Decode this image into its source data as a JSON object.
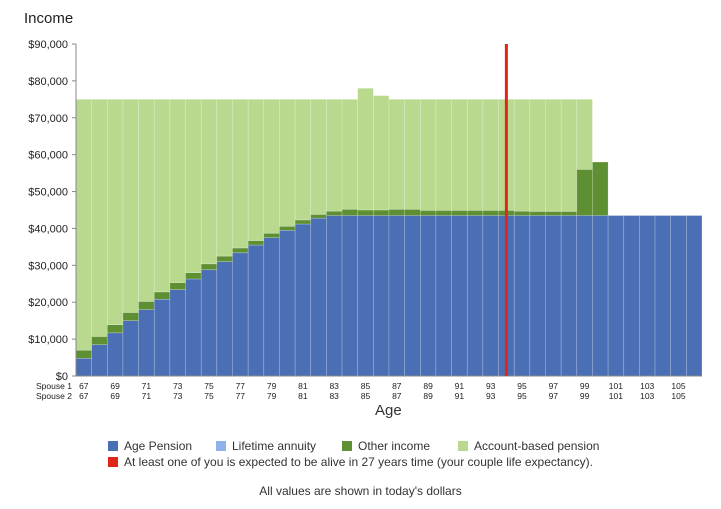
{
  "chart_data": {
    "type": "bar",
    "stacked": true,
    "ylabel": "Income",
    "xlabel": "Age",
    "ylim": [
      0,
      90000
    ],
    "yticks": [
      "$0",
      "$10,000",
      "$20,000",
      "$30,000",
      "$40,000",
      "$50,000",
      "$60,000",
      "$70,000",
      "$80,000",
      "$90,000"
    ],
    "row_labels": [
      "Spouse 1",
      "Spouse 2"
    ],
    "categories": [
      67,
      68,
      69,
      70,
      71,
      72,
      73,
      74,
      75,
      76,
      77,
      78,
      79,
      80,
      81,
      82,
      83,
      84,
      85,
      86,
      87,
      88,
      89,
      90,
      91,
      92,
      93,
      94,
      95,
      96,
      97,
      98,
      99,
      100,
      101,
      102,
      103,
      104,
      105,
      106
    ],
    "tick_labels": [
      "67",
      "69",
      "71",
      "73",
      "75",
      "77",
      "79",
      "81",
      "83",
      "85",
      "87",
      "89",
      "91",
      "93",
      "95",
      "97",
      "99",
      "101",
      "103",
      "105"
    ],
    "series": [
      {
        "name": "Age Pension",
        "color": "#4a6fb5",
        "values": [
          4800,
          8500,
          11700,
          15000,
          18000,
          20800,
          23400,
          26300,
          28800,
          31000,
          33400,
          35500,
          37500,
          39500,
          41200,
          42800,
          43500,
          43500,
          43500,
          43500,
          43500,
          43500,
          43500,
          43500,
          43500,
          43500,
          43500,
          43500,
          43500,
          43500,
          43500,
          43500,
          43500,
          43500,
          43500,
          43500,
          43500,
          43500,
          43500,
          43500
        ]
      },
      {
        "name": "Lifetime annuity",
        "color": "#8fb3e8",
        "values": [
          0,
          0,
          0,
          0,
          0,
          0,
          0,
          0,
          0,
          0,
          0,
          0,
          0,
          0,
          0,
          0,
          0,
          0,
          0,
          0,
          0,
          0,
          0,
          0,
          0,
          0,
          0,
          0,
          0,
          0,
          0,
          0,
          0,
          0,
          0,
          0,
          0,
          0,
          0,
          0
        ]
      },
      {
        "name": "Other income",
        "color": "#5e8f32",
        "values": [
          2200,
          2200,
          2200,
          2200,
          2200,
          2000,
          1900,
          1700,
          1600,
          1500,
          1300,
          1200,
          1200,
          1100,
          1100,
          1000,
          1200,
          1700,
          1500,
          1500,
          1700,
          1700,
          1400,
          1400,
          1400,
          1400,
          1400,
          1400,
          1200,
          1100,
          1100,
          1100,
          12500,
          14500,
          0,
          0,
          0,
          0,
          0,
          0
        ]
      },
      {
        "name": "Account-based pension",
        "color": "#b9d98f",
        "values": [
          68000,
          64300,
          61100,
          57800,
          54800,
          52200,
          49700,
          47000,
          44600,
          42500,
          40300,
          38300,
          36300,
          34400,
          32700,
          31200,
          30300,
          29800,
          33000,
          31000,
          29800,
          29800,
          30100,
          30100,
          30100,
          30100,
          30100,
          30100,
          30300,
          30400,
          30400,
          30400,
          19000,
          0,
          0,
          0,
          0,
          0,
          0,
          0
        ]
      }
    ],
    "annotations": [
      {
        "type": "vertical-line",
        "x": 94,
        "color": "#e0251b",
        "label": "At least one of you is expected to be alive in 27 years time (your couple life expectancy)."
      }
    ],
    "legend_position": "bottom",
    "grid": false
  },
  "footnote": "All values are shown in today's dollars"
}
